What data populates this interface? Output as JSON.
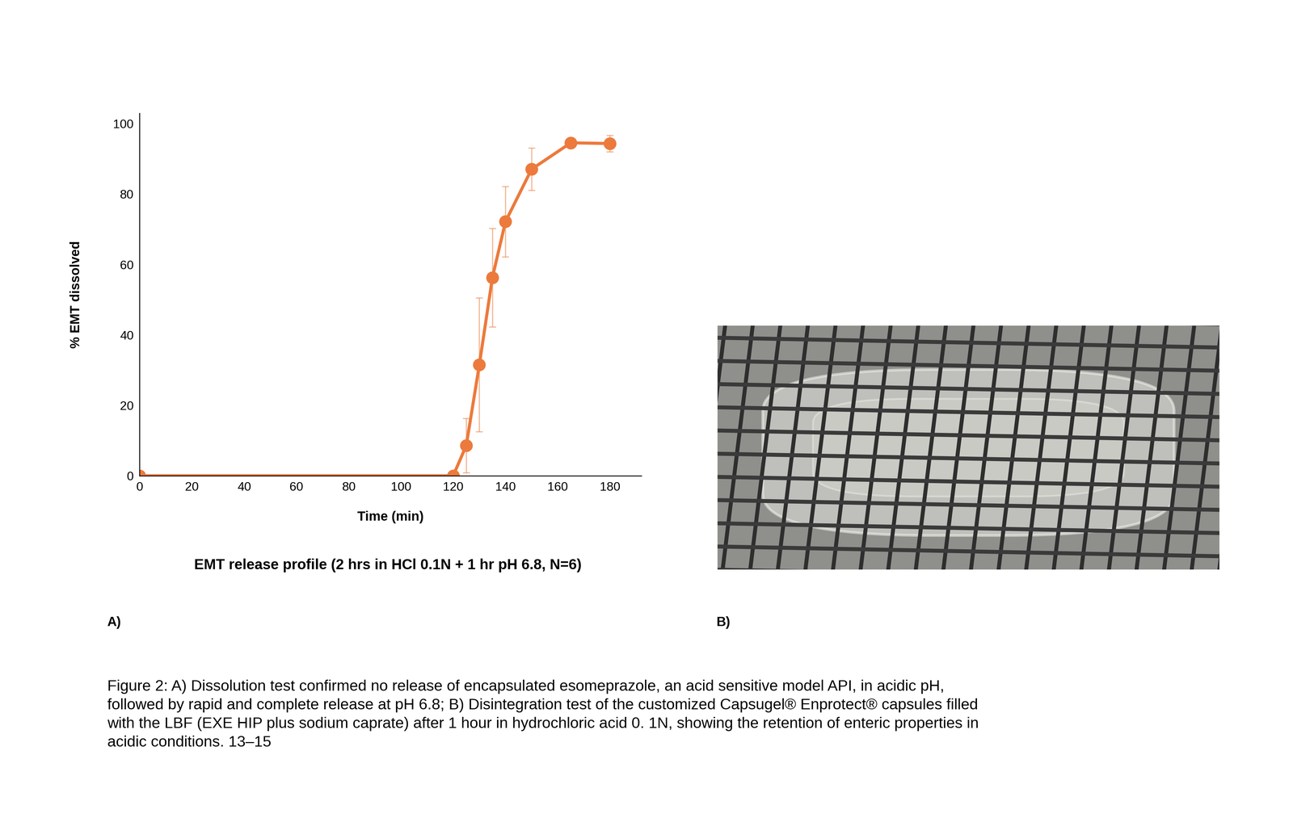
{
  "chart_data": {
    "type": "line",
    "title": "EMT release profile (2 hrs in HCl 0.1N + 1 hr pH 6.8, N=6)",
    "x_label": "Time (min)",
    "y_label": "% EMT dissolved",
    "x": [
      0,
      120,
      125,
      130,
      135,
      140,
      150,
      165,
      180
    ],
    "values": [
      0,
      0,
      8.6,
      31.5,
      56.3,
      72.2,
      87.1,
      94.6,
      94.4
    ],
    "errors": [
      0,
      0,
      7.7,
      19,
      14,
      10,
      6,
      0,
      2.3
    ],
    "color": "#ec7a3c",
    "marker": "o",
    "line_style": "solid",
    "xlim": [
      0,
      192
    ],
    "ylim": [
      0,
      103
    ],
    "xticks": [
      0,
      20,
      40,
      60,
      80,
      100,
      120,
      140,
      160,
      180
    ],
    "yticks": [
      0,
      20,
      40,
      60,
      80,
      100
    ],
    "grid": false
  },
  "panel_labels": [
    "A)",
    "B)"
  ],
  "caption": "Figure 2: A) Dissolution test confirmed no release of encapsulated esomeprazole, an acid sensitive model API, in acidic pH,\nfollowed by rapid and complete release at pH 6.8; B) Disintegration test of the customized Capsugel® Enprotect® capsules filled\nwith the LBF (EXE HIP plus sodium caprate) after 1 hour in hydrochloric acid 0. 1N, showing the retention of enteric properties in\nacidic conditions. 13–15"
}
